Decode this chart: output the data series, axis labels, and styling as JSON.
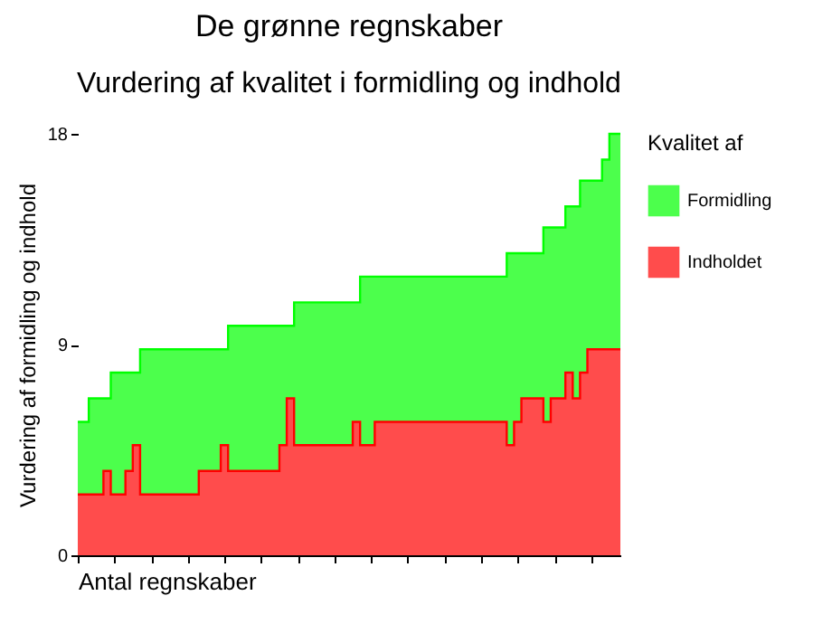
{
  "chart_data": {
    "type": "area",
    "stacked": true,
    "title": "De grønne regnskaber",
    "subtitle": "Vurdering af kvalitet i formidling og indhold",
    "xlabel": "Antal regnskaber",
    "ylabel": "Vurdering af formidling og indhold",
    "legend_title": "Kvalitet af",
    "legend": "right",
    "tick_labels": "y",
    "grid": false,
    "ylim": [
      0,
      18
    ],
    "yticks": [
      0,
      9,
      18
    ],
    "categories": [
      null,
      null,
      null,
      null,
      null,
      null,
      null,
      null,
      null,
      null,
      null,
      null,
      null,
      null,
      null,
      null,
      null,
      null,
      null,
      null,
      null,
      null,
      null,
      null,
      null,
      null,
      null,
      null,
      null,
      null,
      null,
      null,
      null,
      null,
      null,
      null,
      null,
      null,
      null,
      null,
      null,
      null,
      null,
      null,
      null,
      null,
      null,
      null,
      null,
      null,
      null,
      null,
      null,
      null,
      null,
      null,
      null,
      null,
      null,
      null,
      null,
      null,
      null,
      null,
      null,
      null,
      null,
      null,
      null,
      null,
      null,
      null,
      null,
      null,
      null
    ],
    "series": [
      {
        "name": "Indholdet",
        "color": "#ff0000",
        "values": [
          2.6,
          2.6,
          2.6,
          2.6,
          3.6,
          2.6,
          2.6,
          3.6,
          4.7,
          2.6,
          2.6,
          2.6,
          2.6,
          2.6,
          2.6,
          2.6,
          2.6,
          3.6,
          3.6,
          3.6,
          4.7,
          3.6,
          3.6,
          3.6,
          3.6,
          3.6,
          3.6,
          3.6,
          4.7,
          6.7,
          4.7,
          4.7,
          4.7,
          4.7,
          4.7,
          4.7,
          4.7,
          4.7,
          5.7,
          4.7,
          4.7,
          5.7,
          5.7,
          5.7,
          5.7,
          5.7,
          5.7,
          5.7,
          5.7,
          5.7,
          5.7,
          5.7,
          5.7,
          5.7,
          5.7,
          5.7,
          5.7,
          5.7,
          5.7,
          4.7,
          5.7,
          6.7,
          6.7,
          6.7,
          5.7,
          6.7,
          6.7,
          7.8,
          6.7,
          7.8,
          8.8,
          8.8,
          8.8,
          8.8,
          8.8
        ]
      },
      {
        "name": "Formidling",
        "color": "#00ff00",
        "values": [
          3.1,
          3.1,
          4.1,
          4.1,
          3.1,
          5.2,
          5.2,
          4.2,
          3.1,
          6.2,
          6.2,
          6.2,
          6.2,
          6.2,
          6.2,
          6.2,
          6.2,
          5.2,
          5.2,
          5.2,
          4.1,
          6.2,
          6.2,
          6.2,
          6.2,
          6.2,
          6.2,
          6.2,
          5.1,
          3.1,
          6.1,
          6.1,
          6.1,
          6.1,
          6.1,
          6.1,
          6.1,
          6.1,
          5.1,
          7.2,
          7.2,
          6.2,
          6.2,
          6.2,
          6.2,
          6.2,
          6.2,
          6.2,
          6.2,
          6.2,
          6.2,
          6.2,
          6.2,
          6.2,
          6.2,
          6.2,
          6.2,
          6.2,
          6.2,
          8.2,
          7.2,
          6.2,
          6.2,
          6.2,
          8.3,
          7.3,
          7.3,
          7.1,
          8.2,
          8.2,
          7.2,
          7.2,
          8.1,
          9.2,
          9.2
        ]
      }
    ]
  }
}
